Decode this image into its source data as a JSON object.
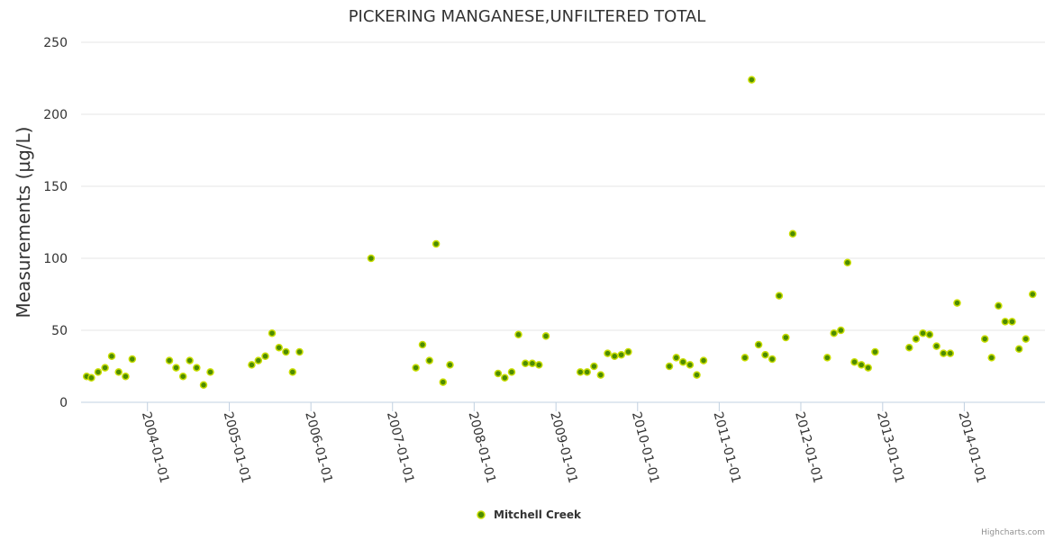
{
  "chart_data": {
    "type": "scatter",
    "title": "PICKERING MANGANESE,UNFILTERED TOTAL",
    "xlabel": "",
    "ylabel": "Measurements (µg/L)",
    "ylim": [
      0,
      250
    ],
    "yticks": [
      0,
      50,
      100,
      150,
      200,
      250
    ],
    "xlim": [
      "2003-03-10",
      "2014-12-28"
    ],
    "xticks": [
      "2004-01-01",
      "2005-01-01",
      "2006-01-01",
      "2007-01-01",
      "2008-01-01",
      "2009-01-01",
      "2010-01-01",
      "2011-01-01",
      "2012-01-01",
      "2013-01-01",
      "2014-01-01"
    ],
    "legend": "bottom-center",
    "series": [
      {
        "name": "Mitchell Creek",
        "color": "#4d8c00",
        "points": [
          {
            "x": "2003-04-04",
            "y": 18
          },
          {
            "x": "2003-04-25",
            "y": 17
          },
          {
            "x": "2003-05-25",
            "y": 21
          },
          {
            "x": "2003-06-25",
            "y": 24
          },
          {
            "x": "2003-07-25",
            "y": 32
          },
          {
            "x": "2003-08-25",
            "y": 21
          },
          {
            "x": "2003-09-25",
            "y": 18
          },
          {
            "x": "2003-10-25",
            "y": 30
          },
          {
            "x": "2004-04-08",
            "y": 29
          },
          {
            "x": "2004-05-08",
            "y": 24
          },
          {
            "x": "2004-06-08",
            "y": 18
          },
          {
            "x": "2004-07-08",
            "y": 29
          },
          {
            "x": "2004-08-08",
            "y": 24
          },
          {
            "x": "2004-09-08",
            "y": 12
          },
          {
            "x": "2004-10-08",
            "y": 21
          },
          {
            "x": "2005-04-11",
            "y": 26
          },
          {
            "x": "2005-05-11",
            "y": 29
          },
          {
            "x": "2005-06-11",
            "y": 32
          },
          {
            "x": "2005-07-11",
            "y": 48
          },
          {
            "x": "2005-08-11",
            "y": 38
          },
          {
            "x": "2005-09-11",
            "y": 35
          },
          {
            "x": "2005-10-11",
            "y": 21
          },
          {
            "x": "2005-11-11",
            "y": 35
          },
          {
            "x": "2006-09-27",
            "y": 100
          },
          {
            "x": "2007-04-15",
            "y": 24
          },
          {
            "x": "2007-05-15",
            "y": 40
          },
          {
            "x": "2007-06-15",
            "y": 29
          },
          {
            "x": "2007-07-15",
            "y": 110
          },
          {
            "x": "2007-08-15",
            "y": 14
          },
          {
            "x": "2007-09-15",
            "y": 26
          },
          {
            "x": "2008-04-17",
            "y": 20
          },
          {
            "x": "2008-05-17",
            "y": 17
          },
          {
            "x": "2008-06-17",
            "y": 21
          },
          {
            "x": "2008-07-17",
            "y": 47
          },
          {
            "x": "2008-08-17",
            "y": 27
          },
          {
            "x": "2008-09-17",
            "y": 27
          },
          {
            "x": "2008-10-17",
            "y": 26
          },
          {
            "x": "2008-11-17",
            "y": 46
          },
          {
            "x": "2009-04-20",
            "y": 21
          },
          {
            "x": "2009-05-20",
            "y": 21
          },
          {
            "x": "2009-06-20",
            "y": 25
          },
          {
            "x": "2009-07-20",
            "y": 19
          },
          {
            "x": "2009-08-20",
            "y": 34
          },
          {
            "x": "2009-09-20",
            "y": 32
          },
          {
            "x": "2009-10-20",
            "y": 33
          },
          {
            "x": "2009-11-20",
            "y": 35
          },
          {
            "x": "2010-05-23",
            "y": 25
          },
          {
            "x": "2010-06-23",
            "y": 31
          },
          {
            "x": "2010-07-23",
            "y": 28
          },
          {
            "x": "2010-08-23",
            "y": 26
          },
          {
            "x": "2010-09-23",
            "y": 19
          },
          {
            "x": "2010-10-23",
            "y": 29
          },
          {
            "x": "2011-04-26",
            "y": 31
          },
          {
            "x": "2011-05-26",
            "y": 224
          },
          {
            "x": "2011-06-26",
            "y": 40
          },
          {
            "x": "2011-07-26",
            "y": 33
          },
          {
            "x": "2011-08-26",
            "y": 30
          },
          {
            "x": "2011-09-26",
            "y": 74
          },
          {
            "x": "2011-10-26",
            "y": 45
          },
          {
            "x": "2011-11-26",
            "y": 117
          },
          {
            "x": "2012-04-28",
            "y": 31
          },
          {
            "x": "2012-05-28",
            "y": 48
          },
          {
            "x": "2012-06-28",
            "y": 50
          },
          {
            "x": "2012-07-28",
            "y": 97
          },
          {
            "x": "2012-08-28",
            "y": 28
          },
          {
            "x": "2012-09-28",
            "y": 26
          },
          {
            "x": "2012-10-28",
            "y": 24
          },
          {
            "x": "2012-11-28",
            "y": 35
          },
          {
            "x": "2013-04-30",
            "y": 38
          },
          {
            "x": "2013-05-30",
            "y": 44
          },
          {
            "x": "2013-06-30",
            "y": 48
          },
          {
            "x": "2013-07-30",
            "y": 47
          },
          {
            "x": "2013-08-30",
            "y": 39
          },
          {
            "x": "2013-09-30",
            "y": 34
          },
          {
            "x": "2013-10-30",
            "y": 34
          },
          {
            "x": "2013-11-30",
            "y": 69
          },
          {
            "x": "2014-04-03",
            "y": 44
          },
          {
            "x": "2014-05-03",
            "y": 31
          },
          {
            "x": "2014-06-03",
            "y": 67
          },
          {
            "x": "2014-07-03",
            "y": 56
          },
          {
            "x": "2014-08-03",
            "y": 56
          },
          {
            "x": "2014-09-03",
            "y": 37
          },
          {
            "x": "2014-10-03",
            "y": 44
          },
          {
            "x": "2014-11-03",
            "y": 75
          }
        ]
      }
    ]
  },
  "credits": "Highcharts.com"
}
